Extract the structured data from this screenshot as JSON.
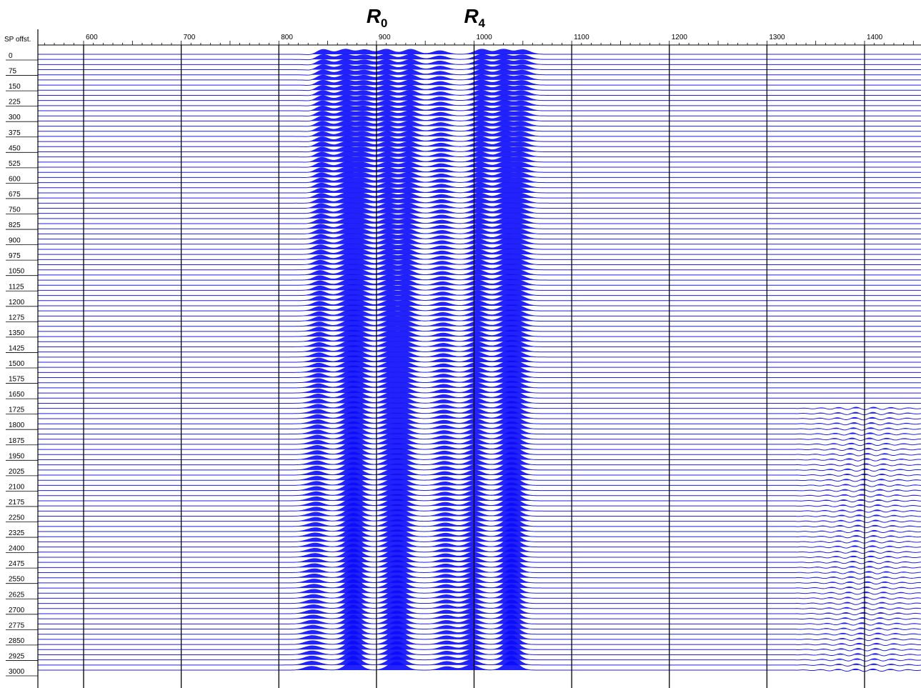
{
  "chart_data": {
    "type": "line",
    "chart_kind": "seismic wiggle-trace gather",
    "corner_label": "SP offst.",
    "xlim": [
      555,
      1455
    ],
    "x_ticks": [
      600,
      700,
      800,
      900,
      1000,
      1100,
      1200,
      1300,
      1400
    ],
    "x_tick_labels": [
      "600",
      "700",
      "800",
      "900",
      "1000",
      "1100",
      "1200",
      "1300",
      "1400"
    ],
    "ylim": [
      0,
      3000
    ],
    "y_tick_labels": [
      "0",
      "75",
      "150",
      "225",
      "300",
      "375",
      "450",
      "525",
      "600",
      "675",
      "750",
      "825",
      "900",
      "975",
      "1050",
      "1125",
      "1200",
      "1275",
      "1350",
      "1425",
      "1500",
      "1575",
      "1650",
      "1725",
      "1800",
      "1875",
      "1950",
      "2025",
      "2100",
      "2175",
      "2250",
      "2325",
      "2400",
      "2475",
      "2550",
      "2625",
      "2700",
      "2775",
      "2850",
      "2925",
      "3000"
    ],
    "trace_spacing": 25,
    "annotations": [
      {
        "text": "R",
        "sub": "0",
        "x": 900
      },
      {
        "text": "R",
        "sub": "4",
        "x": 1000
      }
    ],
    "reflection_bands": [
      {
        "x": 845,
        "amp": 1.0
      },
      {
        "x": 868,
        "amp": 1.0
      },
      {
        "x": 888,
        "amp": 0.9
      },
      {
        "x": 910,
        "amp": 1.0
      },
      {
        "x": 935,
        "amp": 1.0
      },
      {
        "x": 965,
        "amp": 0.7
      },
      {
        "x": 1008,
        "amp": 1.0
      },
      {
        "x": 1030,
        "amp": 1.0
      },
      {
        "x": 1050,
        "amp": 0.9
      }
    ],
    "grid": true,
    "color": "#1f1fe6",
    "fill_color": "#0a0aff"
  }
}
